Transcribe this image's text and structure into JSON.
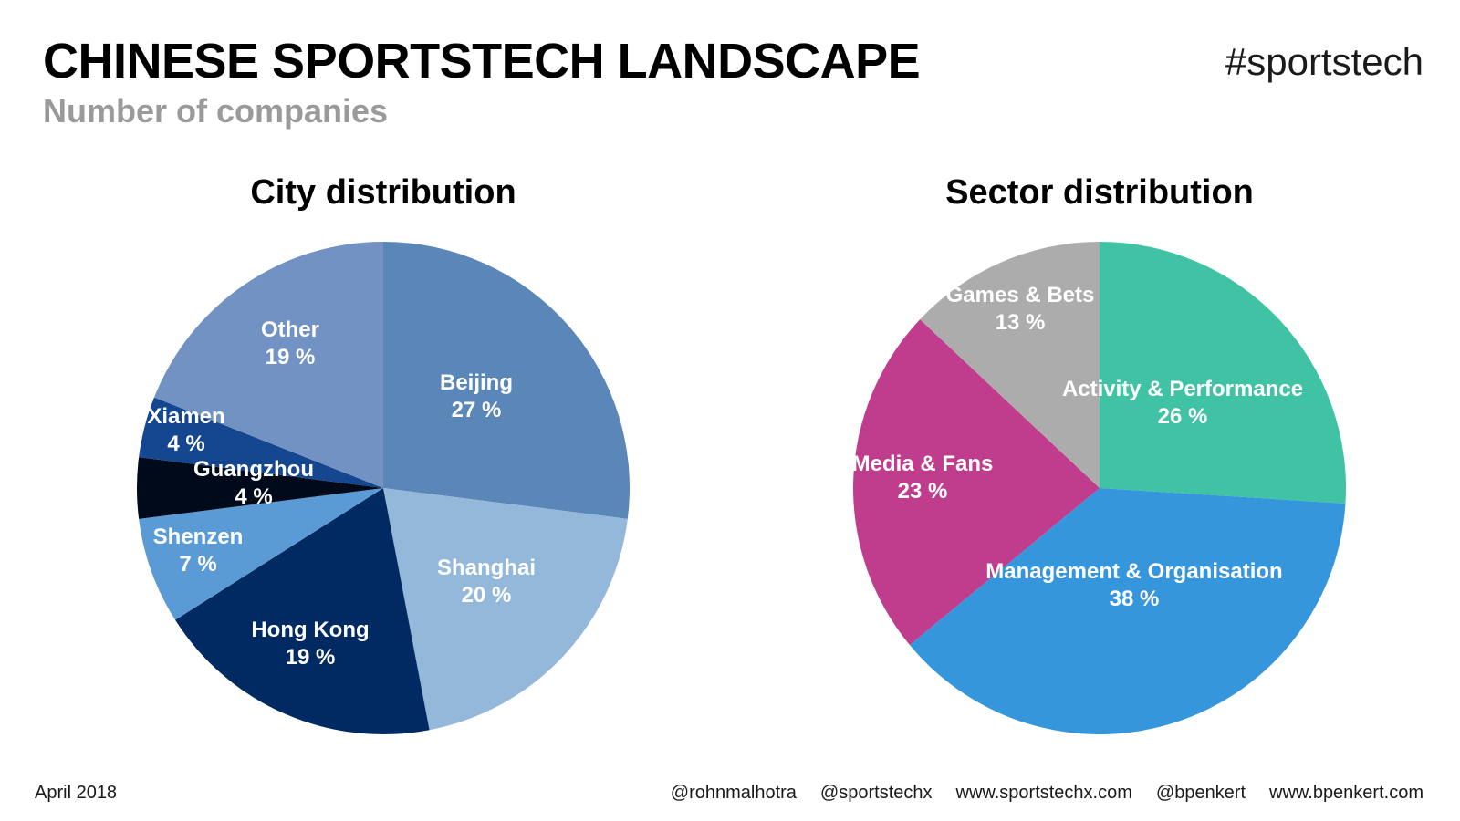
{
  "header": {
    "title": "CHINESE SPORTSTECH LANDSCAPE",
    "subtitle": "Number of companies",
    "hashtag": "#sportstech"
  },
  "footer": {
    "date": "April 2018",
    "links": [
      "@rohnmalhotra",
      "@sportstechx",
      "www.sportstechx.com",
      "@bpenkert",
      "www.bpenkert.com"
    ]
  },
  "chart_data": [
    {
      "type": "pie",
      "title": "City distribution",
      "labels": [
        "Beijing",
        "Shanghai",
        "Hong Kong",
        "Shenzen",
        "Guangzhou",
        "Xiamen",
        "Other"
      ],
      "values": [
        27,
        20,
        19,
        7,
        4,
        4,
        19
      ],
      "value_labels": [
        "27 %",
        "20 %",
        "19 %",
        "7 %",
        "4 %",
        "4 %",
        "19 %"
      ],
      "colors": [
        "#5b86b8",
        "#93b8da",
        "#002a61",
        "#5b9bd5",
        "#000a1a",
        "#14478f",
        "#7192c2"
      ],
      "start": "12 o'clock",
      "direction": "clockwise"
    },
    {
      "type": "pie",
      "title": "Sector distribution",
      "labels": [
        "Activity & Performance",
        "Management & Organisation",
        "Media & Fans",
        "Games & Bets"
      ],
      "values": [
        26,
        38,
        23,
        13
      ],
      "value_labels": [
        "26 %",
        "38 %",
        "23 %",
        "13 %"
      ],
      "colors": [
        "#40c2a5",
        "#3596db",
        "#c03d8d",
        "#acacac"
      ],
      "start": "12 o'clock",
      "direction": "clockwise"
    }
  ]
}
